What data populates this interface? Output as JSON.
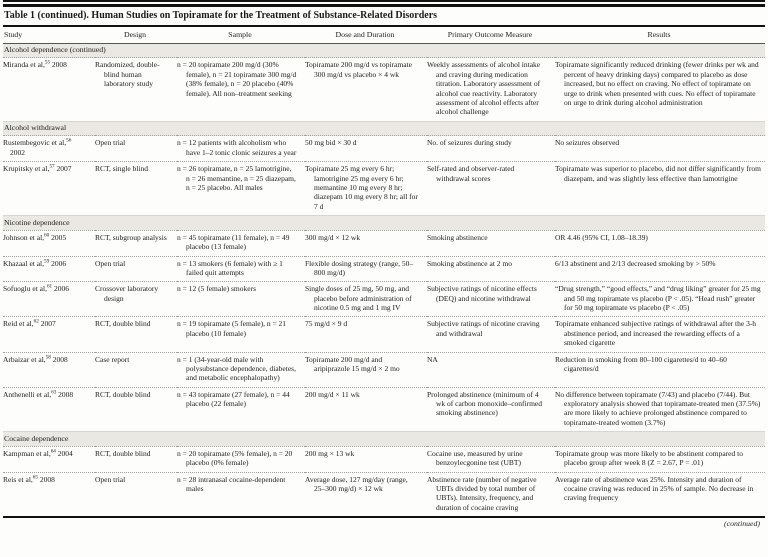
{
  "title": "Table 1 (continued). Human Studies on Topiramate for the Treatment of Substance-Related Disorders",
  "columns": [
    "Study",
    "Design",
    "Sample",
    "Dose and Duration",
    "Primary Outcome Measure",
    "Results"
  ],
  "rows": [
    {
      "type": "section",
      "label": "Alcohol dependence (continued)"
    },
    {
      "type": "study",
      "study": "Miranda et al,",
      "ref": "55",
      "year": " 2008",
      "design": "Randomized, double-blind human laboratory study",
      "sample": "n = 20 topiramate 200 mg/d (30% female), n = 21 topiramate 300 mg/d (38% female), n = 20 placebo (40% female). All non–treatment seeking",
      "dose": "Topiramate 200 mg/d vs topiramate 300 mg/d vs placebo × 4 wk",
      "outcome": "Weekly assessments of alcohol intake and craving during medication titration. Laboratory assessment of alcohol cue reactivity. Laboratory assessment of alcohol effects after alcohol challenge",
      "results": "Topiramate significantly reduced drinking (fewer drinks per wk and percent of heavy drinking days) compared to placebo as dose increased, but no effect on craving. No effect of topiramate on urge to drink when presented with cues. No effect of topiramate on urge to drink during alcohol administration"
    },
    {
      "type": "section",
      "label": "Alcohol withdrawal"
    },
    {
      "type": "study",
      "study": "Rustembegovic et al,",
      "ref": "56",
      "year": " 2002",
      "design": "Open trial",
      "sample": "n = 12 patients with alcoholism who have 1–2 tonic clonic seizures a year",
      "dose": "50 mg bid × 30 d",
      "outcome": "No. of seizures during study",
      "results": "No seizures observed"
    },
    {
      "type": "study",
      "study": "Krupitsky et al,",
      "ref": "57",
      "year": " 2007",
      "design": "RCT, single blind",
      "sample": "n = 26 topiramate, n = 25 lamotrigine, n = 26 memantine, n = 25 diazepam, n = 25 placebo. All males",
      "dose": "Topiramate 25 mg every 6 hr; lamotrigine 25 mg every 6 hr; memantine 10 mg every 8 hr; diazepam 10 mg every 8 hr; all for 7 d",
      "outcome": "Self-rated and observer-rated withdrawal scores",
      "results": "Topiramate was superior to placebo, did not differ significantly from diazepam, and was slightly less effective than lamotrigine"
    },
    {
      "type": "section",
      "label": "Nicotine dependence"
    },
    {
      "type": "study",
      "study": "Johnson et al,",
      "ref": "60",
      "year": " 2005",
      "design": "RCT, subgroup analysis",
      "sample": "n = 45 topiramate (11 female), n = 49 placebo (13 female)",
      "dose": "300 mg/d × 12 wk",
      "outcome": "Smoking abstinence",
      "results": "OR 4.46 (95% CI, 1.08–18.39)"
    },
    {
      "type": "study",
      "study": "Khazaal et al,",
      "ref": "59",
      "year": " 2006",
      "design": "Open trial",
      "sample": "n = 13 smokers (6 female) with ≥ 1 failed quit attempts",
      "dose": "Flexible dosing strategy (range, 50–800 mg/d)",
      "outcome": "Smoking abstinence at 2 mo",
      "results": "6/13 abstinent and 2/13 decreased smoking by > 50%"
    },
    {
      "type": "study",
      "study": "Sofuoglu et al,",
      "ref": "61",
      "year": " 2006",
      "design": "Crossover laboratory design",
      "sample": "n = 12 (5 female) smokers",
      "dose": "Single doses of 25 mg, 50 mg, and placebo before administration of nicotine 0.5 mg and 1 mg IV",
      "outcome": "Subjective ratings of nicotine effects (DEQ) and nicotine withdrawal",
      "results": "“Drug strength,” “good effects,” and “drug liking” greater for 25 mg and 50 mg topiramate vs placebo (P < .05). “Head rush” greater for 50 mg topiramate vs placebo (P < .05)"
    },
    {
      "type": "study",
      "study": "Reid et al,",
      "ref": "62",
      "year": " 2007",
      "design": "RCT, double blind",
      "sample": "n = 19 topiramate (5 female), n = 21 placebo (10 female)",
      "dose": "75 mg/d × 9 d",
      "outcome": "Subjective ratings of nicotine craving and withdrawal",
      "results": "Topiramate enhanced subjective ratings of withdrawal after the 3-h abstinence period, and increased the rewarding effects of a smoked cigarette"
    },
    {
      "type": "study",
      "study": "Arbaizar et al,",
      "ref": "58",
      "year": " 2008",
      "design": "Case report",
      "sample": "n = 1 (34-year-old male with polysubstance dependence, diabetes, and metabolic encephalopathy)",
      "dose": "Topiramate 200 mg/d and aripiprazole 15 mg/d × 2 mo",
      "outcome": "NA",
      "results": "Reduction in smoking from 80–100 cigarettes/d to 40–60 cigarettes/d"
    },
    {
      "type": "study",
      "study": "Anthenelli et al,",
      "ref": "63",
      "year": " 2008",
      "design": "RCT, double blind",
      "sample": "n = 43 topiramate (27 female), n = 44 placebo (22 female)",
      "dose": "200 mg/d × 11 wk",
      "outcome": "Prolonged abstinence (minimum of 4 wk of carbon monoxide–confirmed smoking abstinence)",
      "results": "No difference between topiramate (7/43) and placebo (7/44). But exploratory analysis showed that topiramate-treated men (37.5%) are more likely to achieve prolonged abstinence compared to topiramate-treated women (3.7%)"
    },
    {
      "type": "section",
      "label": "Cocaine dependence"
    },
    {
      "type": "study",
      "study": "Kampman et al,",
      "ref": "64",
      "year": " 2004",
      "design": "RCT, double blind",
      "sample": "n = 20 topiramate (5% female), n = 20 placebo (0% female)",
      "dose": "200 mg × 13 wk",
      "outcome": "Cocaine use, measured by urine benzoylecgonine test (UBT)",
      "results": "Topiramate group was more likely to be abstinent compared to placebo group after week 8 (Z = 2.67, P = .01)"
    },
    {
      "type": "study",
      "study": "Reis et al,",
      "ref": "65",
      "year": " 2008",
      "design": "Open trial",
      "sample": "n = 28 intranasal cocaine-dependent males",
      "dose": "Average dose, 127 mg/day (range, 25–300 mg/d) × 12 wk",
      "outcome": "Abstinence rate (number of negative UBTs divided by total number of UBTs). Intensity, frequency, and duration of cocaine craving",
      "results": "Average rate of abstinence was 25%. Intensity and duration of cocaine craving was reduced in 25% of sample. No decrease in craving frequency"
    }
  ],
  "footer": {
    "continued": "(continued)"
  }
}
